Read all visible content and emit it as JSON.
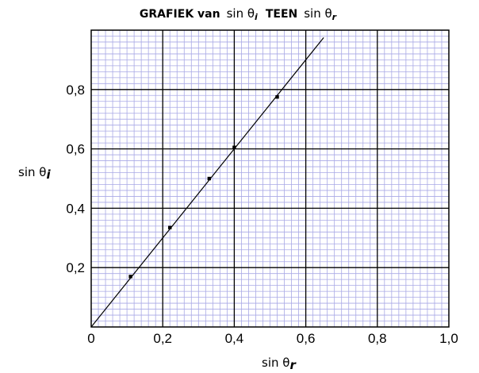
{
  "chart_data": {
    "type": "scatter",
    "title": {
      "prefix": "GRAFIEK van",
      "sym1": "sin θ",
      "sub1": "i",
      "middle": "TEEN",
      "sym2": "sin θ",
      "sub2": "r"
    },
    "xlabel": {
      "main": "sin θ",
      "sub": "r"
    },
    "ylabel": {
      "main": "sin θ",
      "sub": "i"
    },
    "xlim": [
      0,
      1.0
    ],
    "ylim": [
      0,
      1.0
    ],
    "x_ticks": [
      {
        "value": 0,
        "label": "0"
      },
      {
        "value": 0.2,
        "label": "0,2"
      },
      {
        "value": 0.4,
        "label": "0,4"
      },
      {
        "value": 0.6,
        "label": "0,6"
      },
      {
        "value": 0.8,
        "label": "0,8"
      },
      {
        "value": 1.0,
        "label": "1,0"
      }
    ],
    "y_ticks": [
      {
        "value": 0.2,
        "label": "0,2"
      },
      {
        "value": 0.4,
        "label": "0,4"
      },
      {
        "value": 0.6,
        "label": "0,6"
      },
      {
        "value": 0.8,
        "label": "0,8"
      }
    ],
    "grid": {
      "major": 0.2,
      "minor": 0.02
    },
    "points": [
      {
        "x": 0.11,
        "y": 0.17
      },
      {
        "x": 0.22,
        "y": 0.335
      },
      {
        "x": 0.33,
        "y": 0.5
      },
      {
        "x": 0.4,
        "y": 0.605
      },
      {
        "x": 0.52,
        "y": 0.775
      }
    ],
    "fit_line": {
      "x": [
        0,
        0.65
      ],
      "y": [
        0,
        0.975
      ]
    },
    "colors": {
      "minor_grid": "#a9a9e6",
      "major_grid": "#000000",
      "line": "#000000",
      "point": "#000000"
    }
  }
}
